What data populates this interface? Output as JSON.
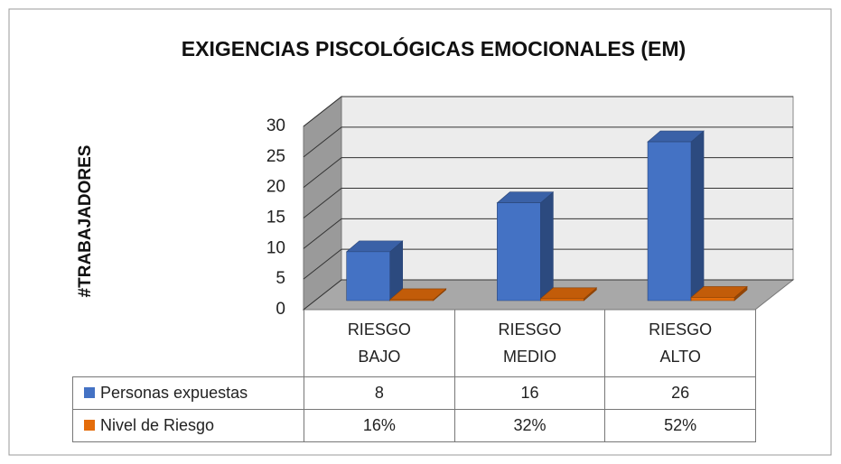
{
  "chart_data": {
    "type": "bar3d",
    "title": "EXIGENCIAS PISCOLÓGICAS EMOCIONALES (EM)",
    "y_label": "#TRABAJADORES",
    "categories": [
      "RIESGO BAJO",
      "RIESGO MEDIO",
      "RIESGO ALTO"
    ],
    "series": [
      {
        "name": "Personas expuestas",
        "color": "#4472c4",
        "values": [
          8,
          16,
          26
        ]
      },
      {
        "name": "Nivel de Riesgo",
        "color": "#e46c0a",
        "values": [
          0.16,
          0.32,
          0.52
        ],
        "value_labels": [
          "16%",
          "32%",
          "52%"
        ]
      }
    ],
    "ylim": [
      0,
      30
    ],
    "yticks": [
      0,
      5,
      10,
      15,
      20,
      25,
      30
    ],
    "grid": true,
    "data_table": true
  }
}
